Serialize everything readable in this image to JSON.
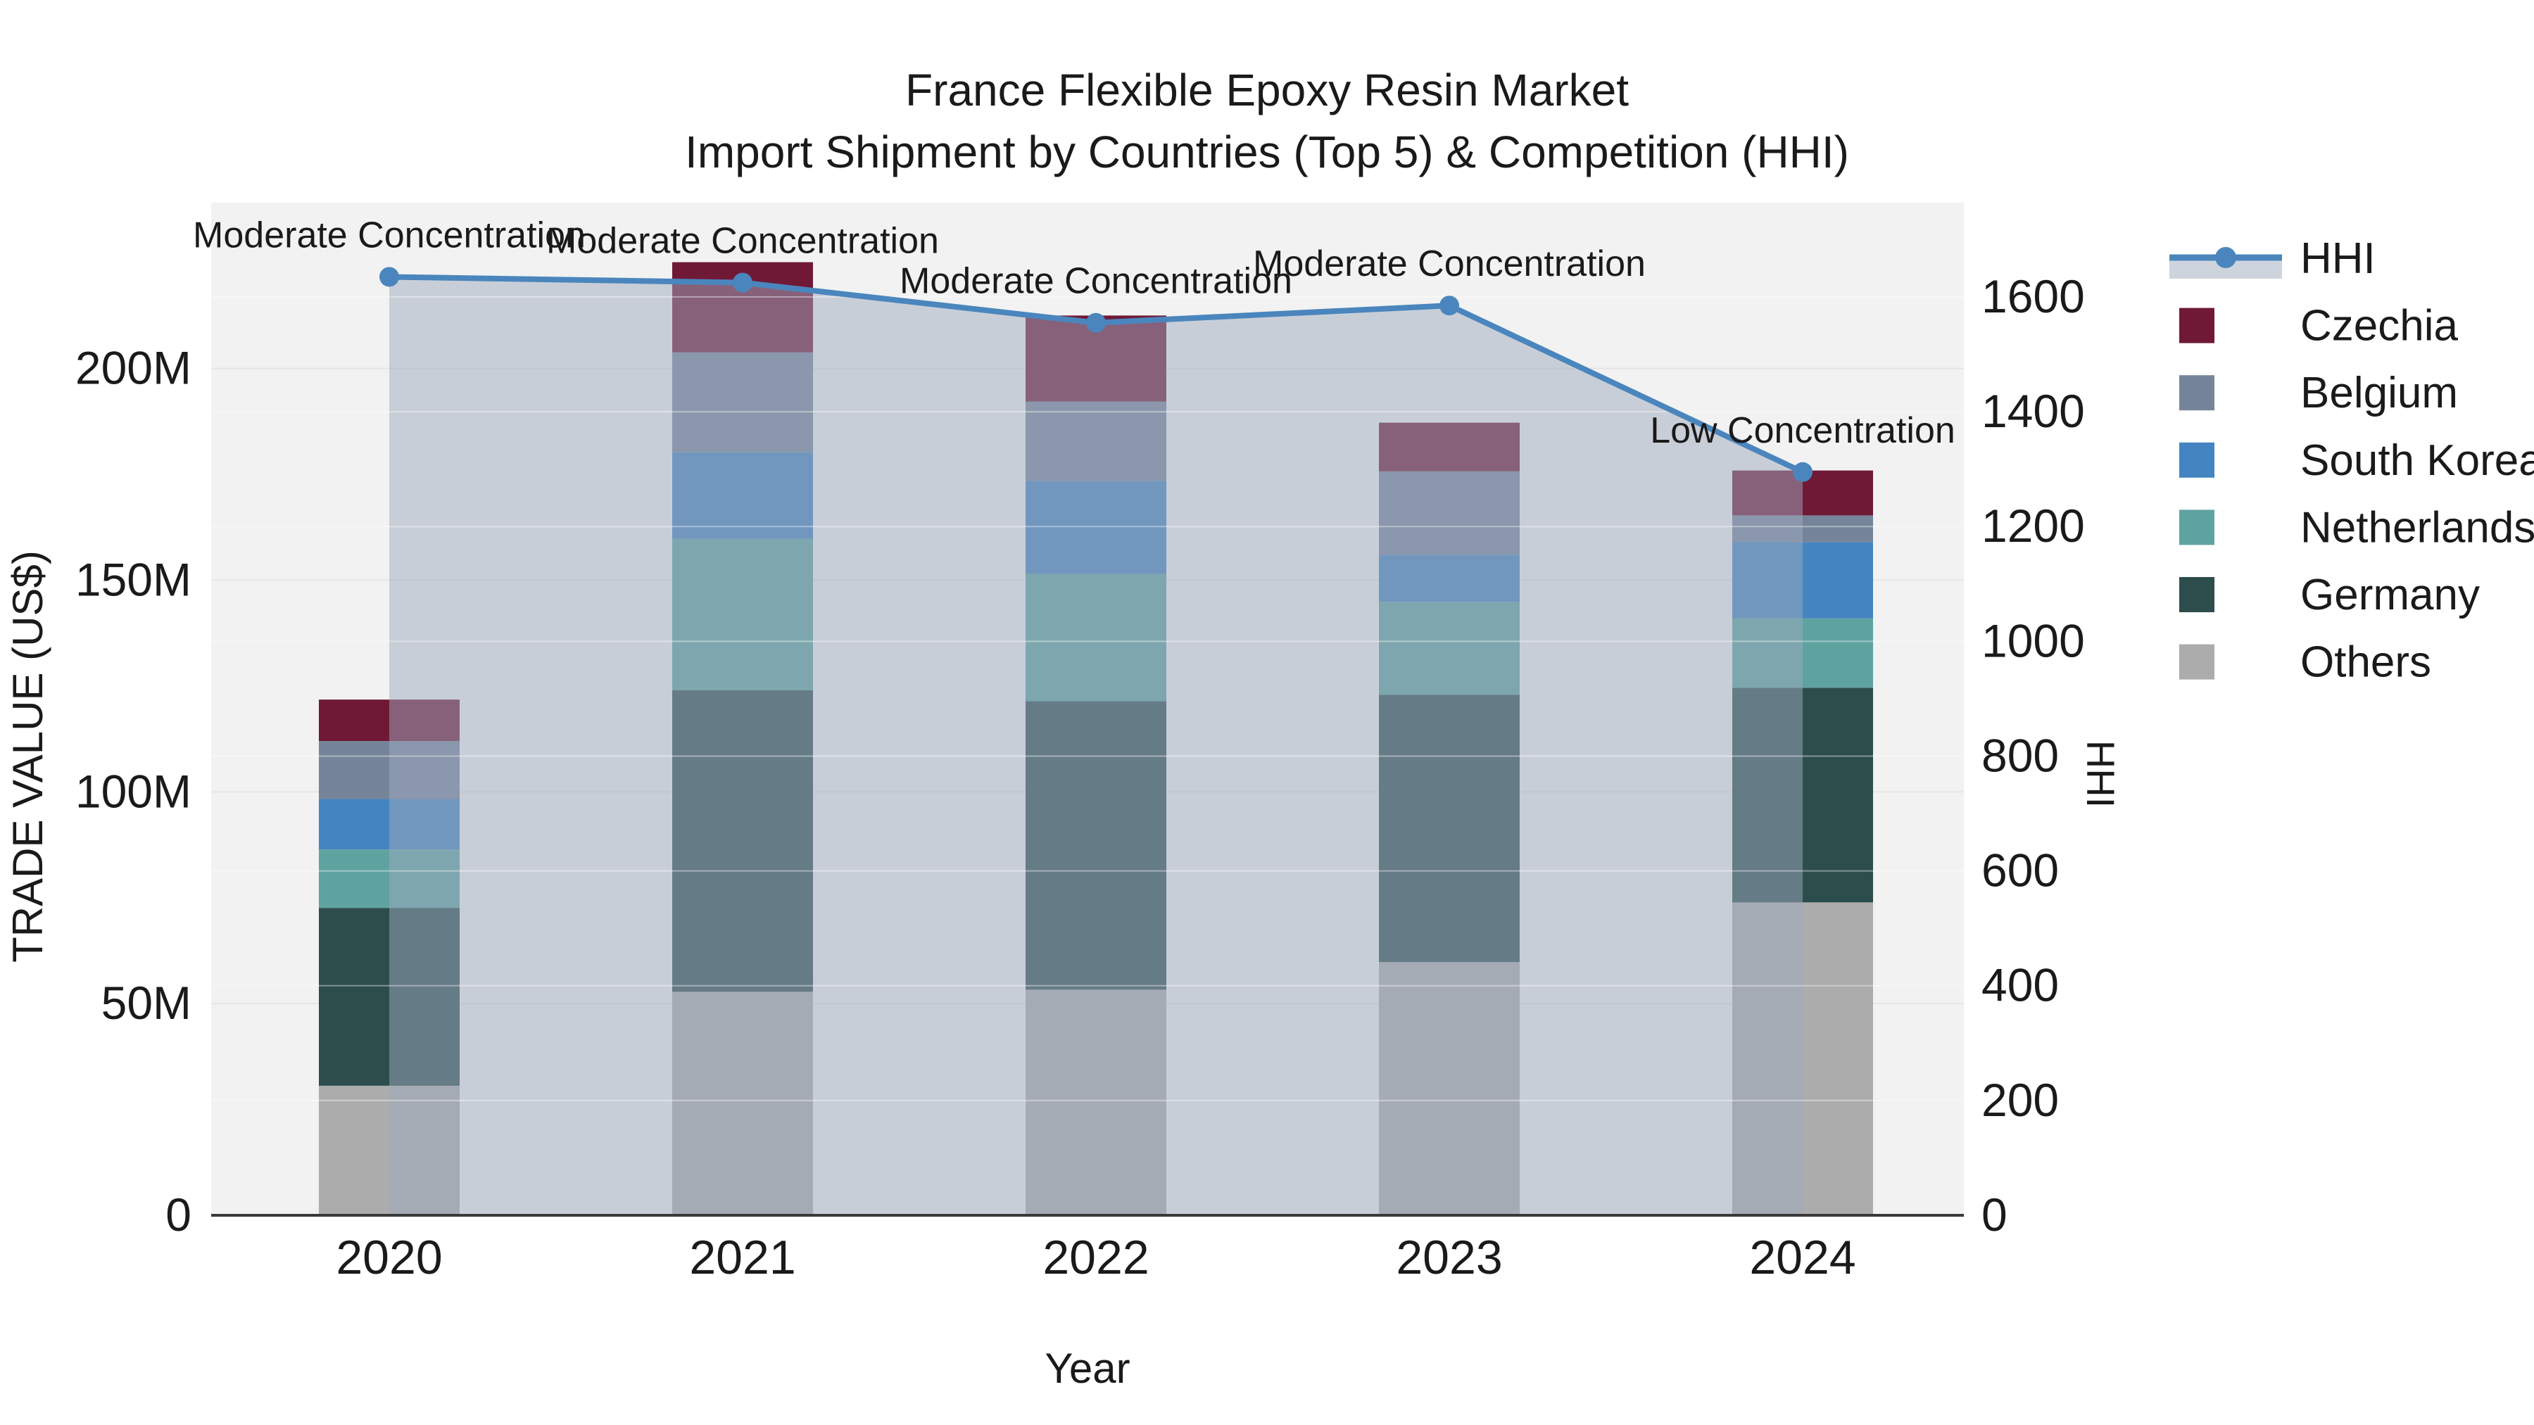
{
  "title": {
    "line1": "France Flexible Epoxy Resin Market",
    "line2": "Import Shipment by Countries (Top 5) & Competition (HHI)"
  },
  "axes": {
    "x_label": "Year",
    "y_left_label": "TRADE VALUE (US$)",
    "y_right_label": "HHI",
    "y_left_ticks": [
      "0",
      "50M",
      "100M",
      "150M",
      "200M"
    ],
    "y_left_tick_values": [
      0,
      50,
      100,
      150,
      200
    ],
    "y_right_ticks": [
      "0",
      "200",
      "400",
      "600",
      "800",
      "1000",
      "1200",
      "1400",
      "1600"
    ],
    "y_right_tick_values": [
      0,
      200,
      400,
      600,
      800,
      1000,
      1200,
      1400,
      1600
    ]
  },
  "chart_data": {
    "type": "bar",
    "stacked": true,
    "categories": [
      "2020",
      "2021",
      "2022",
      "2023",
      "2024"
    ],
    "value_unit": "million US$",
    "ylim_left_millions": [
      0,
      239
    ],
    "ylim_right_hhi": [
      0,
      1600
    ],
    "grid": true,
    "legend_position": "right",
    "series": [
      {
        "name": "Others",
        "color": "#acacac",
        "values": [
          30.6,
          52.8,
          53.3,
          59.8,
          73.9
        ]
      },
      {
        "name": "Germany",
        "color": "#2d4d4d",
        "values": [
          42.0,
          71.2,
          68.1,
          63.1,
          50.7
        ]
      },
      {
        "name": "Netherlands",
        "color": "#5fa3a1",
        "values": [
          13.8,
          35.8,
          30.1,
          22.0,
          16.4
        ]
      },
      {
        "name": "South Korea",
        "color": "#4484c1",
        "values": [
          11.9,
          20.4,
          21.9,
          11.1,
          18.0
        ]
      },
      {
        "name": "Belgium",
        "color": "#76849a",
        "values": [
          13.7,
          23.6,
          18.8,
          19.7,
          6.3
        ]
      },
      {
        "name": "Czechia",
        "color": "#701936",
        "values": [
          9.8,
          21.3,
          20.3,
          11.5,
          10.6
        ]
      }
    ],
    "bar_totals_millions": [
      121.8,
      225.1,
      212.5,
      187.2,
      175.9
    ],
    "line_series": {
      "name": "HHI",
      "axis": "right",
      "color": "#4a86bd",
      "area_fill": "rgba(158,170,190,0.5)",
      "values": [
        1635,
        1625,
        1555,
        1585,
        1295
      ]
    },
    "annotations": [
      {
        "category": "2020",
        "text": "Moderate Concentration"
      },
      {
        "category": "2021",
        "text": "Moderate Concentration"
      },
      {
        "category": "2022",
        "text": "Moderate Concentration"
      },
      {
        "category": "2023",
        "text": "Moderate Concentration"
      },
      {
        "category": "2024",
        "text": "Low Concentration"
      }
    ],
    "legend_entries": [
      "HHI",
      "Czechia",
      "Belgium",
      "South Korea",
      "Netherlands",
      "Germany",
      "Others"
    ]
  },
  "colors": {
    "plot_background": "#f2f2f2",
    "figure_background": "#ffffff",
    "axis_line": "#3a3a3a",
    "gridline": "#e5e5e5",
    "grid_over_fill": "rgba(255,255,255,0.4)"
  }
}
